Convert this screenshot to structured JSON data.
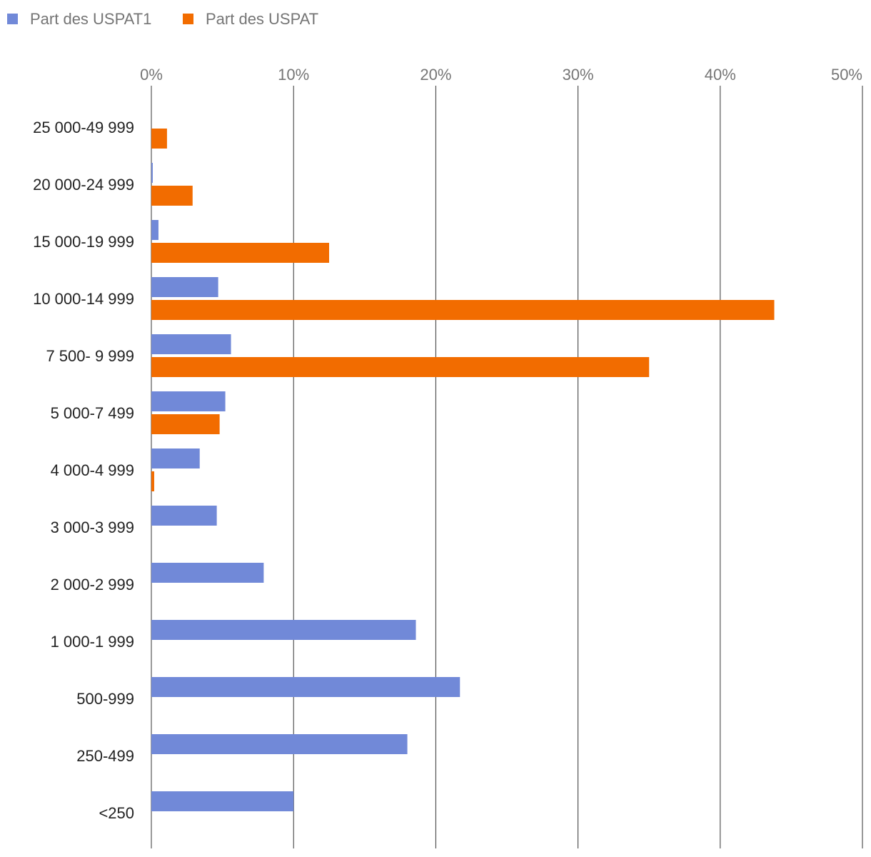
{
  "chart_data": {
    "type": "bar",
    "orientation": "horizontal",
    "title": "",
    "xlabel": "",
    "ylabel": "",
    "xlim": [
      0,
      50
    ],
    "xticks": [
      0,
      10,
      20,
      30,
      40,
      50
    ],
    "tick_suffix": "%",
    "grid": true,
    "legend_position": "top-left",
    "categories": [
      "25 000-49 999",
      "20 000-24 999",
      "15 000-19 999",
      "10 000-14 999",
      "7 500- 9 999",
      "5 000-7 499",
      "4 000-4 999",
      "3 000-3 999",
      "2 000-2 999",
      "1 000-1 999",
      "500-999",
      "250-499",
      "<250"
    ],
    "series": [
      {
        "name": "Part des USPAT1",
        "color": "#7189D8",
        "values": [
          0,
          0.1,
          0.5,
          4.7,
          5.6,
          5.2,
          3.4,
          4.6,
          7.9,
          18.6,
          21.7,
          18.0,
          10.0
        ]
      },
      {
        "name": "Part des USPAT",
        "color": "#F26C00",
        "values": [
          1.1,
          2.9,
          12.5,
          43.8,
          35.0,
          4.8,
          0.2,
          0,
          0,
          0,
          0,
          0,
          0
        ]
      }
    ]
  }
}
